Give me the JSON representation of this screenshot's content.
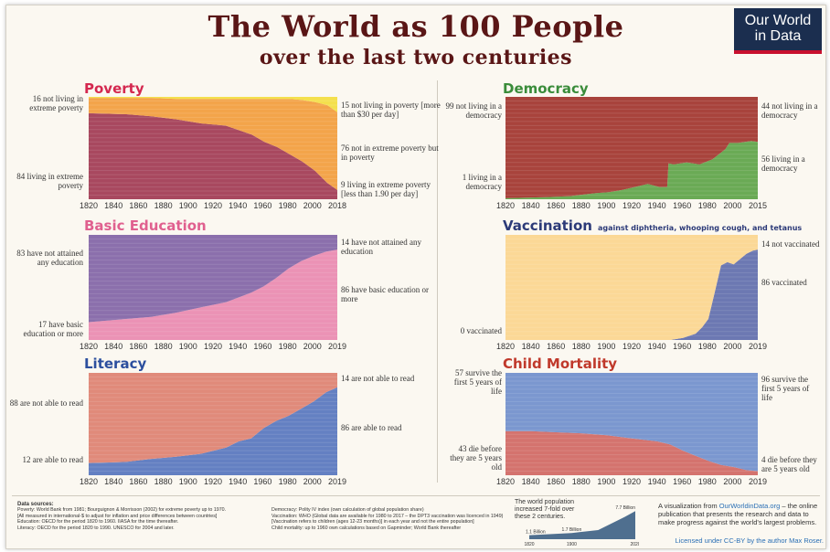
{
  "header": {
    "title": "The World as 100 People",
    "subtitle": "over the last two centuries",
    "logo": [
      "Our World",
      "in Data"
    ]
  },
  "panels": [
    {
      "id": "poverty",
      "title": "Poverty",
      "title_color": "#d4284f",
      "subtitle": "",
      "labels_left": [
        "16 not living in extreme poverty",
        "84 living in extreme poverty"
      ],
      "labels_right": [
        "15 not living in poverty [more than $30 per day]",
        "76 not in extreme poverty but in poverty",
        "9 living in extreme poverty [less than 1.90 per day]"
      ],
      "ticks": [
        "1820",
        "1840",
        "1860",
        "1880",
        "1900",
        "1920",
        "1940",
        "1960",
        "1980",
        "2000",
        "2018"
      ]
    },
    {
      "id": "democracy",
      "title": "Democracy",
      "title_color": "#3a8c3a",
      "subtitle": "",
      "labels_left": [
        "99 not living in a democracy",
        "1 living in a democracy"
      ],
      "labels_right": [
        "44 not living in a democracy",
        "56 living in a democracy"
      ],
      "ticks": [
        "1820",
        "1840",
        "1860",
        "1880",
        "1900",
        "1920",
        "1940",
        "1960",
        "1980",
        "2000",
        "2015"
      ]
    },
    {
      "id": "education",
      "title": "Basic Education",
      "title_color": "#e0608f",
      "subtitle": "",
      "labels_left": [
        "83 have not attained any education",
        "17 have basic education or more"
      ],
      "labels_right": [
        "14 have not attained any education",
        "86 have basic education or more"
      ],
      "ticks": [
        "1820",
        "1840",
        "1860",
        "1880",
        "1900",
        "1920",
        "1940",
        "1960",
        "1980",
        "2000",
        "2019"
      ]
    },
    {
      "id": "vaccination",
      "title": "Vaccination",
      "title_color": "#2c3a78",
      "subtitle": "against diphtheria, whooping cough, and tetanus",
      "labels_left": [
        "0 vaccinated"
      ],
      "labels_right": [
        "14 not vaccinated",
        "86 vaccinated"
      ],
      "ticks": [
        "1820",
        "1840",
        "1860",
        "1880",
        "1900",
        "1920",
        "1940",
        "1960",
        "1980",
        "2000",
        "2019"
      ]
    },
    {
      "id": "literacy",
      "title": "Literacy",
      "title_color": "#2c4f9e",
      "subtitle": "",
      "labels_left": [
        "88 are not able to read",
        "12 are able to read"
      ],
      "labels_right": [
        "14 are not able to read",
        "86 are able to read"
      ],
      "ticks": [
        "1820",
        "1840",
        "1860",
        "1880",
        "1900",
        "1920",
        "1940",
        "1960",
        "1980",
        "2000",
        "2019"
      ]
    },
    {
      "id": "mortality",
      "title": "Child Mortality",
      "title_color": "#c0392b",
      "subtitle": "",
      "labels_left": [
        "57 survive the first 5 years of life",
        "43 die before they are 5 years old"
      ],
      "labels_right": [
        "96 survive the first 5 years of life",
        "4 die before they are 5 years old"
      ],
      "ticks": [
        "1820",
        "1840",
        "1860",
        "1880",
        "1900",
        "1920",
        "1940",
        "1960",
        "1980",
        "2000",
        "2019"
      ]
    }
  ],
  "chart_data": [
    {
      "type": "area",
      "id": "poverty",
      "title": "Poverty",
      "ylim": [
        0,
        100
      ],
      "x": [
        1820,
        1850,
        1870,
        1890,
        1910,
        1929,
        1950,
        1960,
        1970,
        1980,
        1990,
        2000,
        2010,
        2018
      ],
      "series": [
        {
          "name": "living in extreme poverty",
          "color": "#a8485f",
          "values": [
            84,
            83,
            81,
            78,
            74,
            72,
            63,
            56,
            51,
            44,
            37,
            28,
            16,
            9
          ]
        },
        {
          "name": "not in extreme poverty but in poverty",
          "color": "#f3a44a",
          "values": [
            15,
            16,
            18,
            20,
            24,
            26,
            35,
            42,
            47,
            54,
            60,
            67,
            76,
            76
          ]
        },
        {
          "name": "not living in poverty",
          "color": "#f4e04d",
          "values": [
            1,
            1,
            1,
            2,
            2,
            2,
            2,
            2,
            2,
            2,
            3,
            5,
            8,
            15
          ]
        }
      ]
    },
    {
      "type": "area",
      "id": "democracy",
      "title": "Democracy",
      "ylim": [
        0,
        100
      ],
      "x": [
        1820,
        1850,
        1870,
        1890,
        1900,
        1910,
        1920,
        1930,
        1939,
        1945,
        1946,
        1950,
        1960,
        1970,
        1980,
        1990,
        1993,
        2000,
        2010,
        2015
      ],
      "series": [
        {
          "name": "living in a democracy",
          "color": "#6aaa55",
          "values": [
            1,
            2,
            3,
            6,
            7,
            9,
            12,
            15,
            12,
            12,
            35,
            34,
            36,
            34,
            39,
            49,
            55,
            55,
            57,
            56
          ]
        },
        {
          "name": "not living in a democracy",
          "color": "#a8433c",
          "values": [
            99,
            98,
            97,
            94,
            93,
            91,
            88,
            85,
            88,
            88,
            65,
            66,
            64,
            66,
            61,
            51,
            45,
            45,
            43,
            44
          ]
        }
      ]
    },
    {
      "type": "area",
      "id": "education",
      "title": "Basic Education",
      "ylim": [
        0,
        100
      ],
      "x": [
        1820,
        1850,
        1870,
        1890,
        1910,
        1930,
        1950,
        1960,
        1970,
        1980,
        1990,
        2000,
        2010,
        2019
      ],
      "series": [
        {
          "name": "have basic education or more",
          "color": "#eb92b5",
          "values": [
            17,
            20,
            22,
            26,
            31,
            36,
            45,
            51,
            59,
            68,
            75,
            80,
            84,
            86
          ]
        },
        {
          "name": "have not attained any education",
          "color": "#8b6fac",
          "values": [
            83,
            80,
            78,
            74,
            69,
            64,
            55,
            49,
            41,
            32,
            25,
            20,
            16,
            14
          ]
        }
      ]
    },
    {
      "type": "area",
      "id": "vaccination",
      "title": "Vaccination",
      "ylim": [
        0,
        100
      ],
      "x": [
        1820,
        1950,
        1960,
        1970,
        1975,
        1980,
        1985,
        1990,
        1995,
        2000,
        2010,
        2015,
        2019
      ],
      "series": [
        {
          "name": "vaccinated",
          "color": "#6c78b2",
          "values": [
            0,
            0,
            2,
            6,
            12,
            20,
            45,
            71,
            74,
            72,
            82,
            85,
            86
          ]
        },
        {
          "name": "not vaccinated",
          "color": "#fbd896",
          "values": [
            100,
            100,
            98,
            94,
            88,
            80,
            55,
            29,
            26,
            28,
            18,
            15,
            14
          ]
        }
      ]
    },
    {
      "type": "area",
      "id": "literacy",
      "title": "Literacy",
      "ylim": [
        0,
        100
      ],
      "x": [
        1820,
        1850,
        1870,
        1890,
        1910,
        1930,
        1940,
        1950,
        1960,
        1970,
        1980,
        1990,
        2000,
        2010,
        2019
      ],
      "series": [
        {
          "name": "are able to read",
          "color": "#6480c2",
          "values": [
            12,
            13,
            16,
            18,
            21,
            27,
            33,
            36,
            46,
            53,
            58,
            65,
            72,
            81,
            86
          ]
        },
        {
          "name": "are not able to read",
          "color": "#e08a7a",
          "values": [
            88,
            87,
            84,
            82,
            79,
            73,
            67,
            64,
            54,
            47,
            42,
            35,
            28,
            19,
            14
          ]
        }
      ]
    },
    {
      "type": "area",
      "id": "mortality",
      "title": "Child Mortality",
      "ylim": [
        0,
        100
      ],
      "x": [
        1820,
        1840,
        1860,
        1880,
        1900,
        1920,
        1940,
        1950,
        1960,
        1970,
        1980,
        1990,
        2000,
        2010,
        2019
      ],
      "series": [
        {
          "name": "die before they are 5 years old",
          "color": "#d4736e",
          "values": [
            43,
            43,
            42,
            41,
            39,
            36,
            33,
            30,
            24,
            19,
            14,
            10,
            8,
            5,
            4
          ]
        },
        {
          "name": "survive the first 5 years of life",
          "color": "#7b97cf",
          "values": [
            57,
            57,
            58,
            59,
            61,
            64,
            67,
            70,
            76,
            81,
            86,
            90,
            92,
            95,
            96
          ]
        }
      ]
    },
    {
      "type": "area",
      "id": "population",
      "title": "The world population increased 7-fold over these 2 centuries.",
      "x": [
        1820,
        1900,
        1950,
        2000,
        2020
      ],
      "values": [
        1.1,
        1.7,
        2.5,
        6.1,
        7.7
      ],
      "annotations": [
        "1.1 Billion",
        "1.7 Billion",
        "7.7 Billion"
      ],
      "ticks": [
        "1820",
        "1900",
        "2020"
      ]
    }
  ],
  "footer": {
    "sources_head": "Data sources:",
    "sources_col1": [
      "Poverty: World Bank from 1981; Bourguignon & Morrisson (2002) for extreme poverty up to 1970.",
      "[All measured in international-$ to adjust for inflation and price differences between countries]",
      "Education: OECD for the period 1820 to 1960. IIASA for the time thereafter.",
      "Literacy: OECD for the period 1820 to 1990. UNESCO for 2004 and later."
    ],
    "sources_col2": [
      "Democracy: Polity IV index (own calculation of global population share)",
      "Vaccination: WHO (Global data are available for 1980 to 2017 – the DPT3 vaccination was licenced in 1949)",
      "[Vaccination refers to children (ages 12-23 months)] in each year and not the entire population]",
      "Child mortality: up to 1960 own calculations based on Gapminder; World Bank thereafter"
    ],
    "pop_text": "The world population increased 7-fold over these 2 centuries.",
    "credit_pre": "A visualization from ",
    "credit_link": "OurWorldinData.org",
    "credit_post": " – the online publication that presents the research and data to make progress against the world's largest problems.",
    "license": "Licensed under CC-BY by the author Max Roser."
  }
}
